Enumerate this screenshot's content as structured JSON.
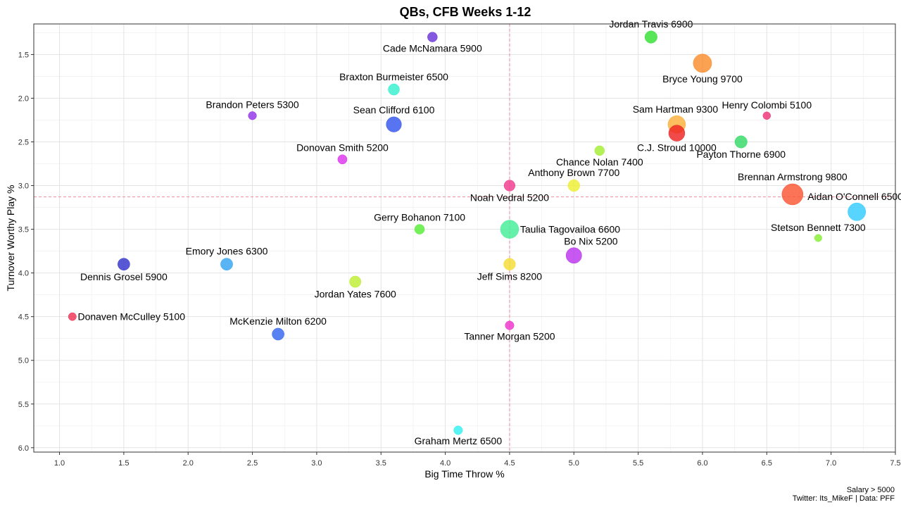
{
  "chart_data": {
    "type": "scatter",
    "title": "QBs, CFB Weeks 1-12",
    "xlabel": "Big Time Throw %",
    "ylabel": "Turnover Worthy Play %",
    "xlim": [
      0.8,
      7.5
    ],
    "ylim": [
      1.15,
      6.05
    ],
    "y_reversed": true,
    "x_ticks": [
      "1.0",
      "1.5",
      "2.0",
      "2.5",
      "3.0",
      "3.5",
      "4.0",
      "4.5",
      "5.0",
      "5.5",
      "6.0",
      "6.5",
      "7.0",
      "7.5"
    ],
    "y_ticks": [
      "1.5",
      "2.0",
      "2.5",
      "3.0",
      "3.5",
      "4.0",
      "4.5",
      "5.0",
      "5.5",
      "6.0"
    ],
    "grid": true,
    "ref_lines": {
      "x": 4.5,
      "y": 3.13
    },
    "caption_lines": [
      "Salary > 5000",
      "Twitter: Its_MikeF | Data: PFF"
    ],
    "points": [
      {
        "label": "Jordan Travis 6900",
        "x": 5.6,
        "y": 1.3,
        "size": 6900,
        "color": "#33e133",
        "label_pos": "above"
      },
      {
        "label": "Cade McNamara 5900",
        "x": 3.9,
        "y": 1.3,
        "size": 5900,
        "color": "#6a33d9",
        "label_pos": "below"
      },
      {
        "label": "Bryce Young 9700",
        "x": 6.0,
        "y": 1.6,
        "size": 9700,
        "color": "#f98c2c",
        "label_pos": "below"
      },
      {
        "label": "Braxton Burmeister 6500",
        "x": 3.6,
        "y": 1.9,
        "size": 6500,
        "color": "#36f0d0",
        "label_pos": "above"
      },
      {
        "label": "Brandon Peters 5300",
        "x": 2.5,
        "y": 2.2,
        "size": 5300,
        "color": "#9333ea",
        "label_pos": "above"
      },
      {
        "label": "Henry Colombi 5100",
        "x": 6.5,
        "y": 2.2,
        "size": 5100,
        "color": "#ee3377",
        "label_pos": "above"
      },
      {
        "label": "Sean Clifford 6100",
        "x": 3.6,
        "y": 2.3,
        "size": 8200,
        "color": "#3355ee",
        "label_pos": "above"
      },
      {
        "label": "Sam Hartman 9300",
        "x": 5.8,
        "y": 2.3,
        "size": 9300,
        "color": "#fbb03b",
        "label_pos": "above-left"
      },
      {
        "label": "C.J. Stroud 10000",
        "x": 5.8,
        "y": 2.4,
        "size": 8600,
        "color": "#ee2222",
        "label_pos": "below"
      },
      {
        "label": "Payton Thorne 6900",
        "x": 6.3,
        "y": 2.5,
        "size": 6900,
        "color": "#33d966",
        "label_pos": "below"
      },
      {
        "label": "Chance Nolan 7400",
        "x": 5.2,
        "y": 2.6,
        "size": 5900,
        "color": "#a3ee33",
        "label_pos": "below"
      },
      {
        "label": "Donovan Smith 5200",
        "x": 3.2,
        "y": 2.7,
        "size": 5700,
        "color": "#dd33ee",
        "label_pos": "above"
      },
      {
        "label": "Noah Vedral 5200",
        "x": 4.5,
        "y": 3.0,
        "size": 6400,
        "color": "#f0398c",
        "label_pos": "below"
      },
      {
        "label": "Anthony Brown 7700",
        "x": 5.0,
        "y": 3.0,
        "size": 6700,
        "color": "#eeee33",
        "label_pos": "above"
      },
      {
        "label": "Brennan Armstrong 9800",
        "x": 6.7,
        "y": 3.1,
        "size": 11000,
        "color": "#fb5533",
        "label_pos": "above"
      },
      {
        "label": "Aidan O'Connell 6500",
        "x": 7.2,
        "y": 3.3,
        "size": 9400,
        "color": "#33ccff",
        "label_pos": "above-left"
      },
      {
        "label": "Taulia Tagovailoa 6600",
        "x": 4.5,
        "y": 3.5,
        "size": 9600,
        "color": "#44ee99",
        "label_pos": "right"
      },
      {
        "label": "Gerry Bohanon 7100",
        "x": 3.8,
        "y": 3.5,
        "size": 5900,
        "color": "#55ee33",
        "label_pos": "above"
      },
      {
        "label": "Stetson Bennett 7300",
        "x": 6.9,
        "y": 3.6,
        "size": 5000,
        "color": "#88ee33",
        "label_pos": "above"
      },
      {
        "label": "Bo Nix 5200",
        "x": 5.0,
        "y": 3.8,
        "size": 8400,
        "color": "#bb33ee",
        "label_pos": "above-right"
      },
      {
        "label": "Dennis Grosel 5900",
        "x": 1.5,
        "y": 3.9,
        "size": 6800,
        "color": "#3333cc",
        "label_pos": "below"
      },
      {
        "label": "Emory Jones 6300",
        "x": 2.3,
        "y": 3.9,
        "size": 6800,
        "color": "#33a3f0",
        "label_pos": "above"
      },
      {
        "label": "Jeff Sims 8200",
        "x": 4.5,
        "y": 3.9,
        "size": 6700,
        "color": "#f5dd33",
        "label_pos": "below"
      },
      {
        "label": "Jordan Yates 7600",
        "x": 3.3,
        "y": 4.1,
        "size": 6600,
        "color": "#c0ee33",
        "label_pos": "below"
      },
      {
        "label": "Donaven McCulley 5100",
        "x": 1.1,
        "y": 4.5,
        "size": 5200,
        "color": "#ee3355",
        "label_pos": "right"
      },
      {
        "label": "Tanner Morgan 5200",
        "x": 4.5,
        "y": 4.6,
        "size": 5500,
        "color": "#ee33cc",
        "label_pos": "below"
      },
      {
        "label": "McKenzie Milton 6200",
        "x": 2.7,
        "y": 4.7,
        "size": 6800,
        "color": "#3366ee",
        "label_pos": "above"
      },
      {
        "label": "Graham Mertz 6500",
        "x": 4.1,
        "y": 5.8,
        "size": 5500,
        "color": "#33f0f0",
        "label_pos": "below"
      }
    ]
  }
}
